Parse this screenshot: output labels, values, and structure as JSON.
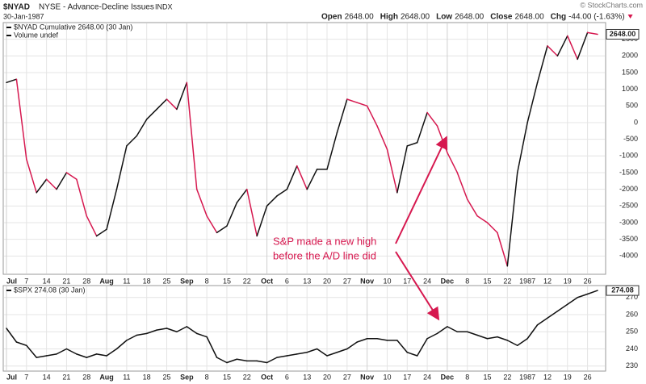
{
  "header": {
    "symbol": "$NYAD",
    "name": "NYSE - Advance-Decline Issues",
    "exchange": "INDX",
    "date": "30-Jan-1987",
    "quote": [
      {
        "label": "Open",
        "value": "2648.00"
      },
      {
        "label": "High",
        "value": "2648.00"
      },
      {
        "label": "Low",
        "value": "2648.00"
      },
      {
        "label": "Close",
        "value": "2648.00"
      },
      {
        "label": "Chg",
        "value": "-44.00 (-1.63%)"
      }
    ],
    "credit": "© StockCharts.com"
  },
  "annotation": [
    "S&P made a new high",
    "before the A/D line did"
  ],
  "chart_data": [
    {
      "type": "line",
      "legend": [
        "$NYAD Cumulative 2648.00 (30 Jan)",
        "Volume undef"
      ],
      "last_label": "2648.00",
      "categories": [
        "Jul",
        null,
        "7",
        null,
        "14",
        null,
        "21",
        null,
        "28",
        null,
        "Aug",
        null,
        "11",
        null,
        "18",
        null,
        "25",
        null,
        "Sep",
        null,
        "8",
        null,
        "15",
        null,
        "22",
        null,
        "Oct",
        null,
        "6",
        null,
        "13",
        null,
        "20",
        null,
        "27",
        null,
        "Nov",
        null,
        "10",
        null,
        "17",
        null,
        "24",
        null,
        "Dec",
        null,
        "8",
        null,
        "15",
        null,
        "22",
        null,
        "1987",
        null,
        "12",
        null,
        "19",
        null,
        "26",
        null
      ],
      "series": [
        {
          "name": "$NYAD",
          "color": "#111111",
          "down_color": "#d6184f",
          "values": [
            1200,
            1300,
            -1100,
            -2100,
            -1700,
            -2000,
            -1500,
            -1700,
            -2800,
            -3400,
            -3200,
            -2000,
            -700,
            -400,
            100,
            400,
            700,
            400,
            1200,
            -2000,
            -2800,
            -3300,
            -3100,
            -2400,
            -2000,
            -3400,
            -2500,
            -2200,
            -2000,
            -1300,
            -2000,
            -1400,
            -1400,
            -300,
            700,
            600,
            500,
            -100,
            -800,
            -2100,
            -700,
            -600,
            300,
            -100,
            -900,
            -1500,
            -2300,
            -2800,
            -3000,
            -3300,
            -4300,
            -1500,
            0,
            1200,
            2300,
            2000,
            2600,
            1900,
            2700,
            2648
          ]
        }
      ],
      "ylim": [
        -4500,
        2950
      ],
      "yticks": [
        -4000,
        -3500,
        -3000,
        -2500,
        -2000,
        -1500,
        -1000,
        -500,
        0,
        500,
        1000,
        1500,
        2000,
        2500
      ],
      "grid": true
    },
    {
      "type": "line",
      "legend": [
        "$SPX 274.08 (30 Jan)"
      ],
      "last_label": "274.08",
      "categories": [
        "Jul",
        null,
        "7",
        null,
        "14",
        null,
        "21",
        null,
        "28",
        null,
        "Aug",
        null,
        "11",
        null,
        "18",
        null,
        "25",
        null,
        "Sep",
        null,
        "8",
        null,
        "15",
        null,
        "22",
        null,
        "Oct",
        null,
        "6",
        null,
        "13",
        null,
        "20",
        null,
        "27",
        null,
        "Nov",
        null,
        "10",
        null,
        "17",
        null,
        "24",
        null,
        "Dec",
        null,
        "8",
        null,
        "15",
        null,
        "22",
        null,
        "1987",
        null,
        "12",
        null,
        "19",
        null,
        "26",
        null
      ],
      "series": [
        {
          "name": "$SPX",
          "color": "#111111",
          "values": [
            252,
            244,
            242,
            235,
            236,
            237,
            240,
            237,
            235,
            237,
            236,
            240,
            245,
            248,
            249,
            251,
            252,
            250,
            253,
            249,
            247,
            235,
            232,
            234,
            233,
            233,
            232,
            235,
            236,
            237,
            238,
            240,
            236,
            238,
            240,
            244,
            246,
            246,
            245,
            245,
            238,
            236,
            246,
            249,
            253,
            250,
            250,
            248,
            246,
            247,
            245,
            242,
            246,
            254,
            258,
            262,
            266,
            270,
            272,
            274.08
          ]
        }
      ],
      "ylim": [
        228,
        276
      ],
      "yticks": [
        230,
        240,
        250,
        260,
        270
      ],
      "grid": true
    }
  ]
}
